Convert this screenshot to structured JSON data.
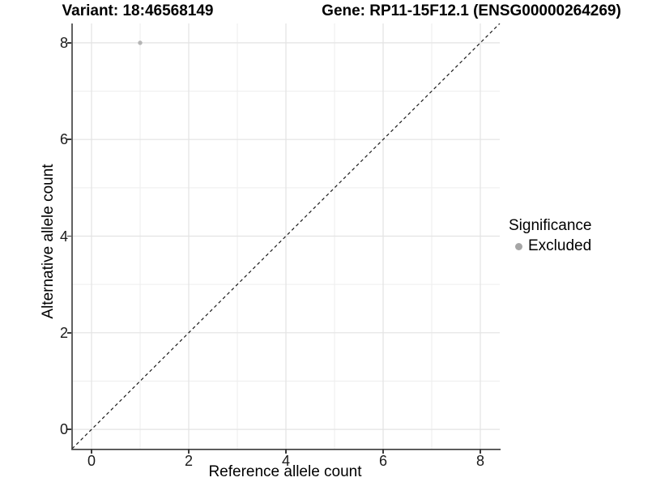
{
  "chart_data": {
    "type": "scatter",
    "title_left": "Variant: 18:46568149",
    "title_right": "Gene: RP11-15F12.1 (ENSG00000264269)",
    "xlabel": "Reference allele count",
    "ylabel": "Alternative allele count",
    "xlim": [
      -0.4,
      8.4
    ],
    "ylim": [
      -0.4,
      8.4
    ],
    "x_ticks": [
      0,
      2,
      4,
      6,
      8
    ],
    "x_minor_ticks": [
      1,
      3,
      5,
      7
    ],
    "y_ticks": [
      0,
      2,
      4,
      6,
      8
    ],
    "y_minor_ticks": [
      1,
      3,
      5,
      7
    ],
    "grid": "major+minor",
    "abline": {
      "slope": 1,
      "intercept": 0,
      "style": "dashed",
      "color": "#1a1a1a"
    },
    "series": [
      {
        "name": "Excluded",
        "color": "#b5b5b5",
        "points": [
          {
            "x": 1,
            "y": 8
          }
        ]
      }
    ],
    "legend": {
      "position": "right",
      "title": "Significance",
      "entries": [
        {
          "label": "Excluded",
          "color": "#a6a6a6"
        }
      ]
    },
    "colors": {
      "background": "#ffffff",
      "grid_major": "#e3e3e3",
      "grid_minor": "#eeeeee",
      "axis_line": "#3a3a3a",
      "tick_label": "#1a1a1a"
    }
  }
}
